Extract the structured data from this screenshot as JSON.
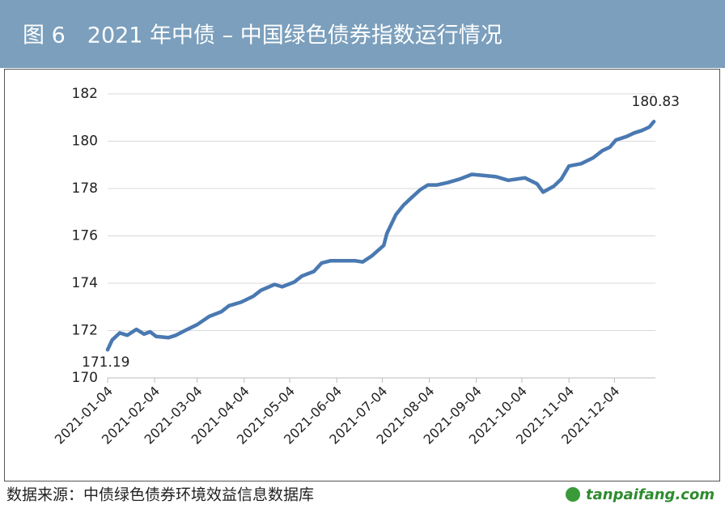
{
  "header": {
    "title": "图 6　2021 年中债 – 中国绿色债券指数运行情况"
  },
  "chart_data": {
    "type": "line",
    "color": "#4a79b1",
    "x": [
      "2021-01-04",
      "2021-01-07",
      "2021-01-12",
      "2021-01-17",
      "2021-01-23",
      "2021-01-28",
      "2021-02-01",
      "2021-02-05",
      "2021-02-13",
      "2021-02-18",
      "2021-02-24",
      "2021-03-04",
      "2021-03-12",
      "2021-03-20",
      "2021-03-25",
      "2021-04-02",
      "2021-04-10",
      "2021-04-15",
      "2021-04-24",
      "2021-04-29",
      "2021-05-07",
      "2021-05-12",
      "2021-05-20",
      "2021-05-25",
      "2021-05-31",
      "2021-06-08",
      "2021-06-16",
      "2021-06-21",
      "2021-06-27",
      "2021-07-05",
      "2021-07-07",
      "2021-07-13",
      "2021-07-18",
      "2021-07-23",
      "2021-07-29",
      "2021-08-03",
      "2021-08-09",
      "2021-08-16",
      "2021-08-24",
      "2021-09-01",
      "2021-09-09",
      "2021-09-17",
      "2021-09-25",
      "2021-10-06",
      "2021-10-14",
      "2021-10-18",
      "2021-10-25",
      "2021-10-30",
      "2021-11-04",
      "2021-11-12",
      "2021-11-20",
      "2021-11-26",
      "2021-12-01",
      "2021-12-05",
      "2021-12-12",
      "2021-12-17",
      "2021-12-22",
      "2021-12-27",
      "2021-12-30"
    ],
    "values": [
      171.19,
      171.6,
      171.9,
      171.8,
      172.05,
      171.85,
      171.95,
      171.75,
      171.7,
      171.8,
      172.0,
      172.25,
      172.6,
      172.8,
      173.05,
      173.2,
      173.45,
      173.7,
      173.95,
      173.85,
      174.05,
      174.3,
      174.5,
      174.85,
      174.95,
      174.95,
      174.95,
      174.9,
      175.15,
      175.6,
      176.1,
      176.9,
      177.3,
      177.6,
      177.95,
      178.15,
      178.15,
      178.25,
      178.4,
      178.6,
      178.55,
      178.5,
      178.35,
      178.45,
      178.2,
      177.85,
      178.1,
      178.4,
      178.95,
      179.05,
      179.3,
      179.6,
      179.75,
      180.05,
      180.2,
      180.35,
      180.45,
      180.6,
      180.83
    ],
    "xlim": [
      "2021-01-04",
      "2021-12-31"
    ],
    "xticks": [
      "2021-01-04",
      "2021-02-04",
      "2021-03-04",
      "2021-04-04",
      "2021-05-04",
      "2021-06-04",
      "2021-07-04",
      "2021-08-04",
      "2021-09-04",
      "2021-10-04",
      "2021-11-04",
      "2021-12-04"
    ],
    "ylim": [
      170,
      182
    ],
    "yticks": [
      170,
      172,
      174,
      176,
      178,
      180,
      182
    ],
    "grid": true
  },
  "footer": {
    "source": "数据来源：中债绿色债券环境效益信息数据库",
    "watermark": "tanpaifang.com"
  }
}
